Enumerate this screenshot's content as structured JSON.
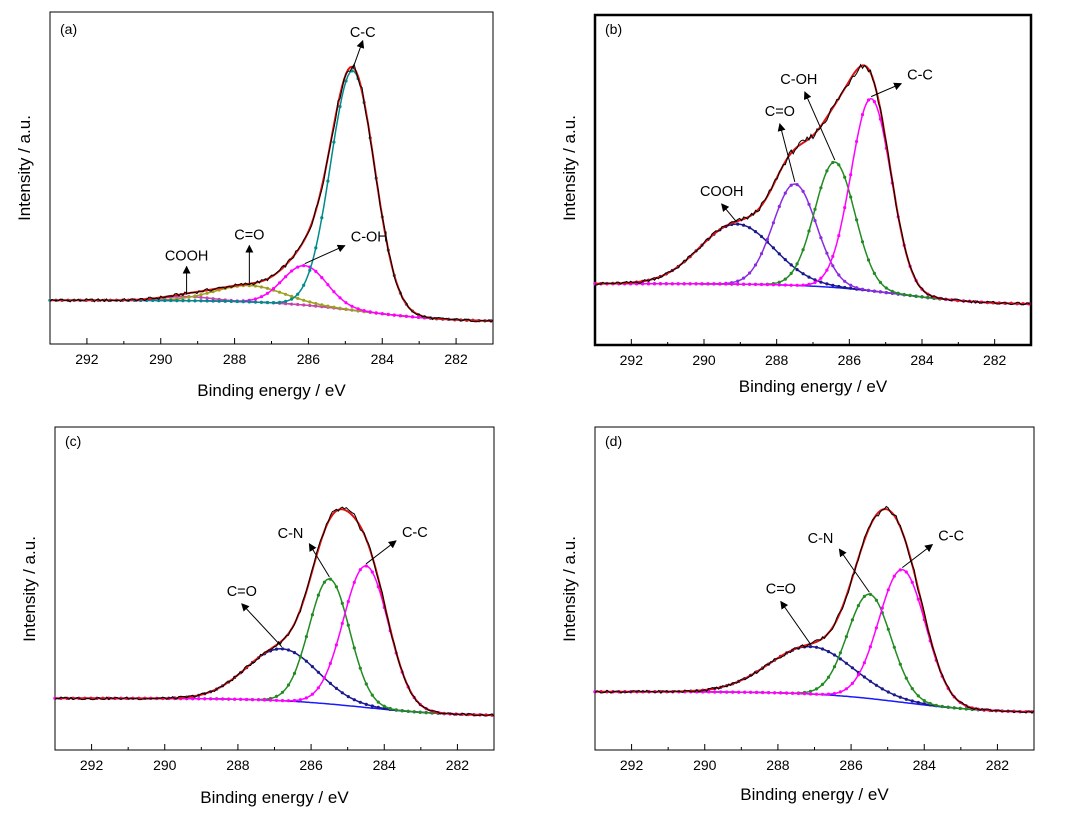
{
  "chart_data": [
    {
      "type": "line",
      "panel_label": "(a)",
      "xlabel": "Binding energy / eV",
      "ylabel": "Intensity / a.u.",
      "xlim": [
        293,
        281
      ],
      "x_reversed": true,
      "x_ticks": [
        292,
        290,
        288,
        286,
        284,
        282
      ],
      "baseline_start": 0.08,
      "baseline_end": 0.0,
      "peaks": [
        {
          "label": "COOH",
          "center": 289.3,
          "fwhm": 1.6,
          "height": 0.015,
          "color": "#cc44aa"
        },
        {
          "label": "C=O",
          "center": 287.6,
          "fwhm": 2.2,
          "height": 0.06,
          "color": "#a0a020"
        },
        {
          "label": "C-OH",
          "center": 286.1,
          "fwhm": 1.4,
          "height": 0.145,
          "color": "#ff00ff"
        },
        {
          "label": "C-C",
          "center": 284.8,
          "fwhm": 1.4,
          "height": 0.88,
          "color": "#008b8b"
        }
      ],
      "annotations": [
        {
          "text": "C-C",
          "at_peak": 3
        },
        {
          "text": "C-OH",
          "at_peak": 2
        },
        {
          "text": "C=O",
          "at_peak": 1
        },
        {
          "text": "COOH",
          "at_peak": 0
        }
      ]
    },
    {
      "type": "line",
      "panel_label": "(b)",
      "xlabel": "Binding energy / eV",
      "ylabel": "Intensity / a.u.",
      "xlim": [
        293,
        281
      ],
      "x_reversed": true,
      "x_ticks": [
        292,
        290,
        288,
        286,
        284,
        282
      ],
      "baseline_start": 0.08,
      "baseline_end": 0.0,
      "peaks": [
        {
          "label": "COOH",
          "center": 289.1,
          "fwhm": 2.4,
          "height": 0.225,
          "color": "#1a1a8c"
        },
        {
          "label": "C=O",
          "center": 287.5,
          "fwhm": 1.4,
          "height": 0.38,
          "color": "#8a2be2"
        },
        {
          "label": "C-OH",
          "center": 286.4,
          "fwhm": 1.3,
          "height": 0.47,
          "color": "#228b22"
        },
        {
          "label": "C-C",
          "center": 285.4,
          "fwhm": 1.3,
          "height": 0.72,
          "color": "#ff00ff"
        }
      ],
      "annotations": [
        {
          "text": "C-C",
          "at_peak": 3
        },
        {
          "text": "C-OH",
          "at_peak": 2
        },
        {
          "text": "C=O",
          "at_peak": 1
        },
        {
          "text": "COOH",
          "at_peak": 0
        }
      ]
    },
    {
      "type": "line",
      "panel_label": "(c)",
      "xlabel": "Binding energy / eV",
      "ylabel": "Intensity / a.u.",
      "xlim": [
        293,
        281
      ],
      "x_reversed": true,
      "x_ticks": [
        292,
        290,
        288,
        286,
        284,
        282
      ],
      "baseline_start": 0.075,
      "baseline_end": 0.0,
      "peaks": [
        {
          "label": "C=O",
          "center": 286.8,
          "fwhm": 2.3,
          "height": 0.22,
          "color": "#1a1a8c"
        },
        {
          "label": "C-N",
          "center": 285.5,
          "fwhm": 1.3,
          "height": 0.53,
          "color": "#228b22"
        },
        {
          "label": "C-C",
          "center": 284.5,
          "fwhm": 1.45,
          "height": 0.6,
          "color": "#ff00ff"
        }
      ],
      "annotations": [
        {
          "text": "C-C",
          "at_peak": 2
        },
        {
          "text": "C-N",
          "at_peak": 1
        },
        {
          "text": "C=O",
          "at_peak": 0
        }
      ]
    },
    {
      "type": "line",
      "panel_label": "(d)",
      "xlabel": "Binding energy / eV",
      "ylabel": "Intensity / a.u.",
      "xlim": [
        293,
        281
      ],
      "x_reversed": true,
      "x_ticks": [
        292,
        290,
        288,
        286,
        284,
        282
      ],
      "baseline_start": 0.09,
      "baseline_end": 0.0,
      "peaks": [
        {
          "label": "C=O",
          "center": 287.1,
          "fwhm": 2.7,
          "height": 0.2,
          "color": "#1a1a8c"
        },
        {
          "label": "C-N",
          "center": 285.5,
          "fwhm": 1.4,
          "height": 0.44,
          "color": "#228b22"
        },
        {
          "label": "C-C",
          "center": 284.6,
          "fwhm": 1.5,
          "height": 0.56,
          "color": "#ff00ff"
        }
      ],
      "annotations": [
        {
          "text": "C-C",
          "at_peak": 2
        },
        {
          "text": "C-N",
          "at_peak": 1
        },
        {
          "text": "C=O",
          "at_peak": 0
        }
      ]
    }
  ],
  "colors": {
    "envelope": "#e01010",
    "raw": "#000000",
    "baseline": "#1a1aff"
  }
}
